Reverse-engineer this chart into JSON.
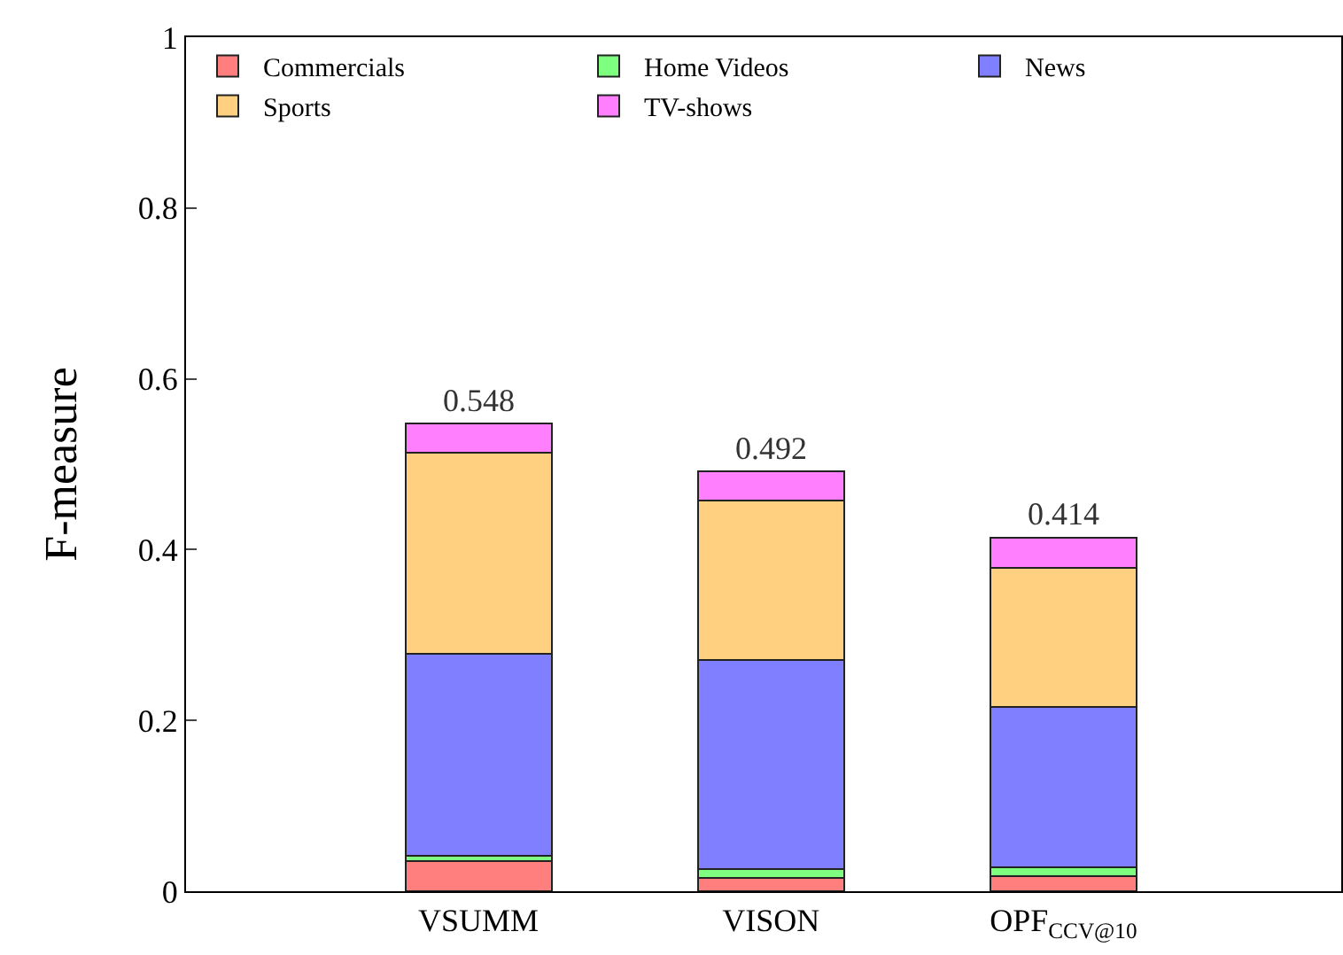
{
  "chart_data": {
    "type": "bar",
    "stacked": true,
    "ylabel": "F-measure",
    "categories": [
      "VSUMM",
      "VISON",
      "OPF$_{CCV@10}$"
    ],
    "series": [
      {
        "name": "Commercials",
        "color": "#ff7f7f",
        "values": [
          0.035,
          0.016,
          0.018
        ]
      },
      {
        "name": "Home Videos",
        "color": "#7fff7f",
        "values": [
          0.006,
          0.01,
          0.01
        ]
      },
      {
        "name": "News",
        "color": "#7f7fff",
        "values": [
          0.237,
          0.245,
          0.188
        ]
      },
      {
        "name": "Sports",
        "color": "#ffd080",
        "values": [
          0.235,
          0.186,
          0.163
        ]
      },
      {
        "name": "TV-shows",
        "color": "#ff7fff",
        "values": [
          0.035,
          0.035,
          0.035
        ]
      }
    ],
    "totals": [
      "0.548",
      "0.492",
      "0.414"
    ],
    "ylim": [
      0,
      1
    ],
    "yticks": [
      0,
      0.2,
      0.4,
      0.6,
      0.8,
      1
    ],
    "grid": false,
    "legend": "top"
  }
}
